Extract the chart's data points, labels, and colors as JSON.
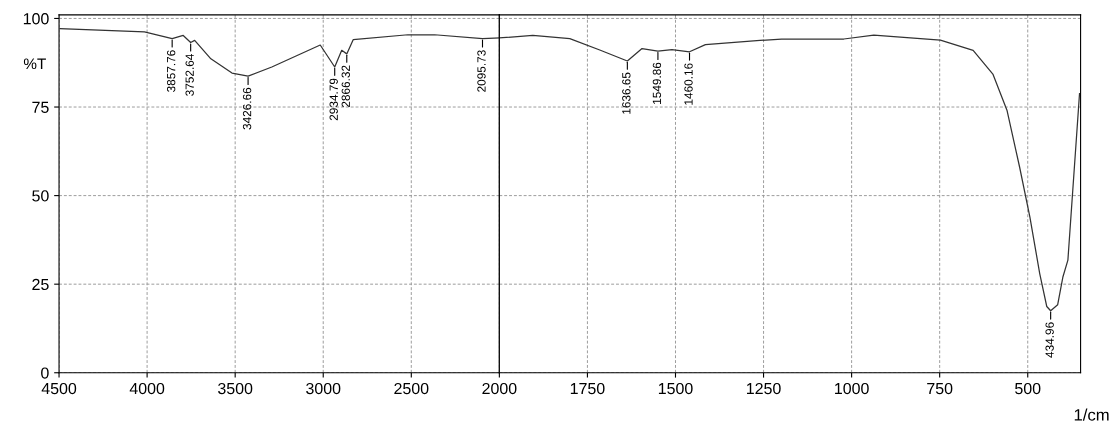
{
  "chart_data": [
    {
      "type": "line",
      "ylabel": "%T",
      "x": [
        4494,
        4015,
        3857.76,
        3795,
        3752.64,
        3730,
        3638,
        3518,
        3426.66,
        3292,
        3017,
        2934.79,
        2895,
        2866.32,
        2830,
        2519,
        2368,
        2095.73,
        2000
      ],
      "series": [
        {
          "color": "#333333",
          "values": [
            97.1,
            96.2,
            94.3,
            95.2,
            93.2,
            93.8,
            88.6,
            84.6,
            83.7,
            86.3,
            92.5,
            86.3,
            91,
            90,
            94,
            95.4,
            95.4,
            94.3,
            94.5
          ]
        }
      ],
      "annotations": [
        {
          "text": "3857.76",
          "x": 3857.76,
          "y": 94.3
        },
        {
          "text": "3752.64",
          "x": 3752.64,
          "y": 93.2
        },
        {
          "text": "3426.66",
          "x": 3426.66,
          "y": 83.7
        },
        {
          "text": "2934.79",
          "x": 2934.79,
          "y": 86.3
        },
        {
          "text": "2866.32",
          "x": 2866.32,
          "y": 90
        },
        {
          "text": "2095.73",
          "x": 2095.73,
          "y": 94.3
        }
      ],
      "xlim": [
        4500,
        2000
      ],
      "xticks": [
        4500,
        4000,
        3500,
        3000,
        2500,
        2000
      ],
      "ylim": [
        0,
        101
      ],
      "yticks": [
        0,
        25,
        50,
        75,
        100
      ],
      "grid": true,
      "line_style": "solid"
    },
    {
      "type": "line",
      "xlabel": "1/cm",
      "x": [
        2000,
        1905,
        1800,
        1715,
        1636.65,
        1595,
        1549.86,
        1510,
        1460.16,
        1415,
        1260,
        1199,
        1022,
        937,
        748,
        655,
        599,
        559,
        523,
        494,
        466,
        446,
        434.96,
        415,
        400,
        386,
        353
      ],
      "series": [
        {
          "color": "#333333",
          "values": [
            94.5,
            95.2,
            94.3,
            91.1,
            88.0,
            91.5,
            90.8,
            91.2,
            90.6,
            92.6,
            93.8,
            94.2,
            94.2,
            95.3,
            93.9,
            91,
            84.3,
            74.1,
            58,
            44,
            28,
            18.7,
            17.5,
            19.2,
            27.1,
            31.8,
            78.8
          ]
        }
      ],
      "annotations": [
        {
          "text": "1636.65",
          "x": 1636.65,
          "y": 88.0
        },
        {
          "text": "1549.86",
          "x": 1549.86,
          "y": 90.8
        },
        {
          "text": "1460.16",
          "x": 1460.16,
          "y": 90.6
        },
        {
          "text": "434.96",
          "x": 434.96,
          "y": 17.5
        }
      ],
      "xlim": [
        2000,
        350
      ],
      "xticks": [
        1750,
        1500,
        1250,
        1000,
        750,
        500
      ],
      "ylim": [
        0,
        101
      ],
      "yticks": [
        0,
        25,
        50,
        75,
        100
      ],
      "tick_labels": "x",
      "grid": true,
      "line_style": "solid"
    }
  ]
}
